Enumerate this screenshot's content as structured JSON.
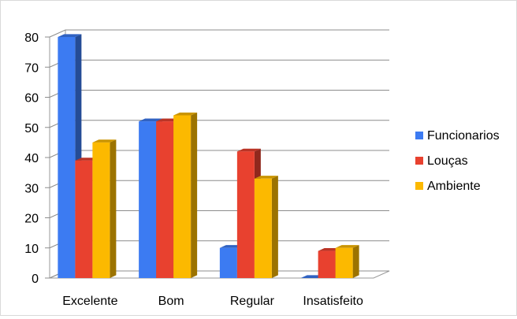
{
  "chart_data": {
    "type": "bar",
    "style": "3d-clustered-column",
    "title": "",
    "xlabel": "",
    "ylabel": "",
    "ylim": [
      0,
      80
    ],
    "yticks": [
      0,
      10,
      20,
      30,
      40,
      50,
      60,
      70,
      80
    ],
    "grid": true,
    "legend_position": "right",
    "categories": [
      "Excelente",
      "Bom",
      "Regular",
      "Insatisfeito"
    ],
    "series": [
      {
        "name": "Funcionarios",
        "color": "#3c7bf2",
        "values": [
          80,
          52,
          10,
          0
        ]
      },
      {
        "name": "Louças",
        "color": "#e8412f",
        "values": [
          39,
          52,
          42,
          9
        ]
      },
      {
        "name": "Ambiente",
        "color": "#fcb900",
        "values": [
          45,
          54,
          33,
          10
        ]
      }
    ]
  }
}
